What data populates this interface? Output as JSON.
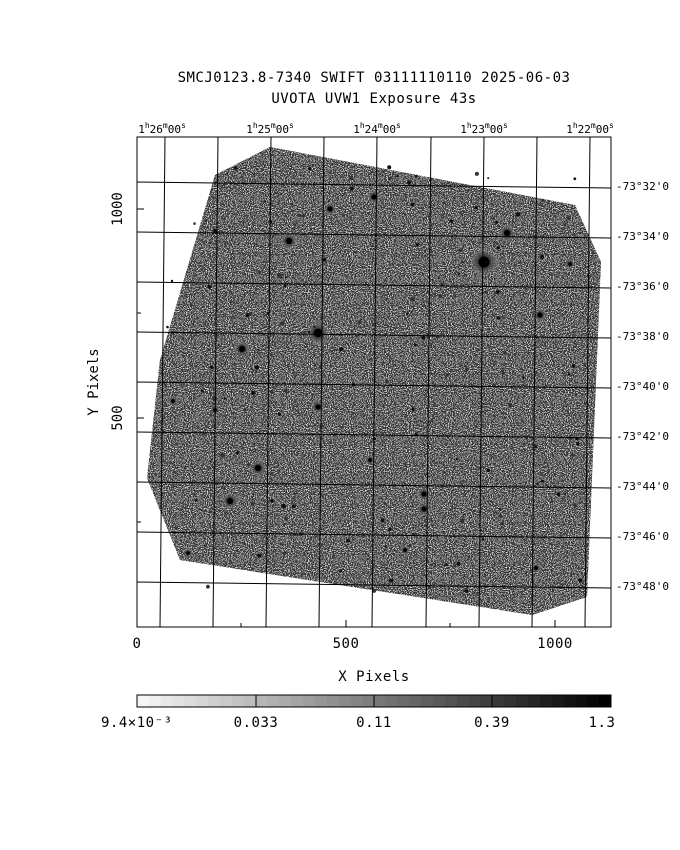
{
  "header": {
    "title_line1": "SMCJ0123.8-7340 SWIFT 03111110110 2025-06-03",
    "title_line2": "UVOTA UVW1 Exposure         43s"
  },
  "top_axis": {
    "ticks": [
      {
        "h": "1",
        "m": "26",
        "s": "00"
      },
      {
        "h": "1",
        "m": "25",
        "s": "00"
      },
      {
        "h": "1",
        "m": "24",
        "s": "00"
      },
      {
        "h": "1",
        "m": "23",
        "s": "00"
      },
      {
        "h": "1",
        "m": "22",
        "s": "00"
      }
    ]
  },
  "right_axis": {
    "ticks": [
      "-73°32'0",
      "-73°34'0",
      "-73°36'0",
      "-73°38'0",
      "-73°40'0",
      "-73°42'0",
      "-73°44'0",
      "-73°46'0",
      "-73°48'0"
    ]
  },
  "x_axis": {
    "label": "X Pixels",
    "ticks": [
      "0",
      "500",
      "1000"
    ]
  },
  "y_axis": {
    "label": "Y Pixels",
    "ticks": [
      "1000",
      "500"
    ]
  },
  "colorbar": {
    "ticks": [
      "9.4×10⁻³",
      "0.033",
      "0.11",
      "0.39",
      "1.3"
    ]
  }
}
